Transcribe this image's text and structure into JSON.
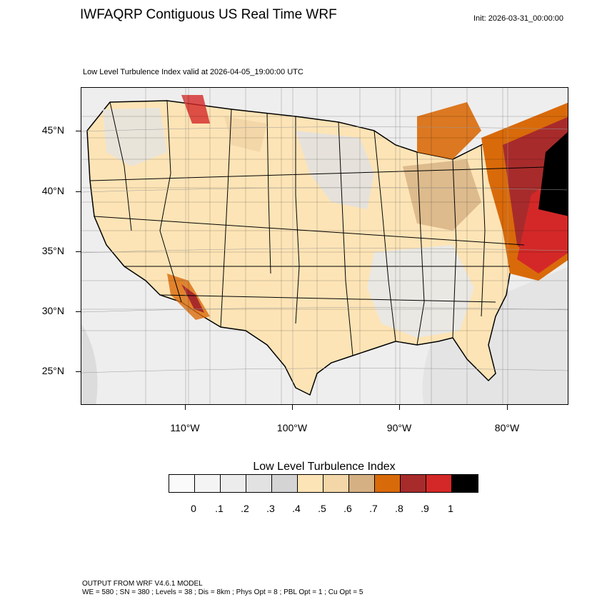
{
  "header": {
    "title": "IWFAQRP Contiguous US Real Time WRF",
    "init": "Init: 2026-03-31_00:00:00",
    "subtitle": "Low Level Turbulence Index valid at 2026-04-05_19:00:00 UTC"
  },
  "map": {
    "lat_labels": [
      "45°N",
      "40°N",
      "35°N",
      "30°N",
      "25°N"
    ],
    "lon_labels": [
      "110°W",
      "100°W",
      "90°W",
      "80°W"
    ],
    "lat_values": [
      45,
      40,
      35,
      30,
      25
    ],
    "lon_values": [
      -110,
      -100,
      -90,
      -80
    ]
  },
  "legend": {
    "title": "Low Level Turbulence Index",
    "tick_labels": [
      "0",
      ".1",
      ".2",
      ".3",
      ".4",
      ".5",
      ".6",
      ".7",
      ".8",
      ".9",
      "1"
    ],
    "colors": [
      "#fafafa",
      "#f4f4f4",
      "#ececec",
      "#e2e2e2",
      "#d4d4d4",
      "#fde4b6",
      "#f3d7a9",
      "#d4b083",
      "#d96a0a",
      "#a82b2b",
      "#d42828",
      "#000000"
    ]
  },
  "footer": {
    "line1": "OUTPUT FROM WRF V4.6.1 MODEL",
    "line2": "WE = 580 ; SN = 380 ; Levels = 38 ; Dis = 8km ; Phys Opt = 8 ; PBL Opt = 1 ; Cu Opt = 5"
  }
}
